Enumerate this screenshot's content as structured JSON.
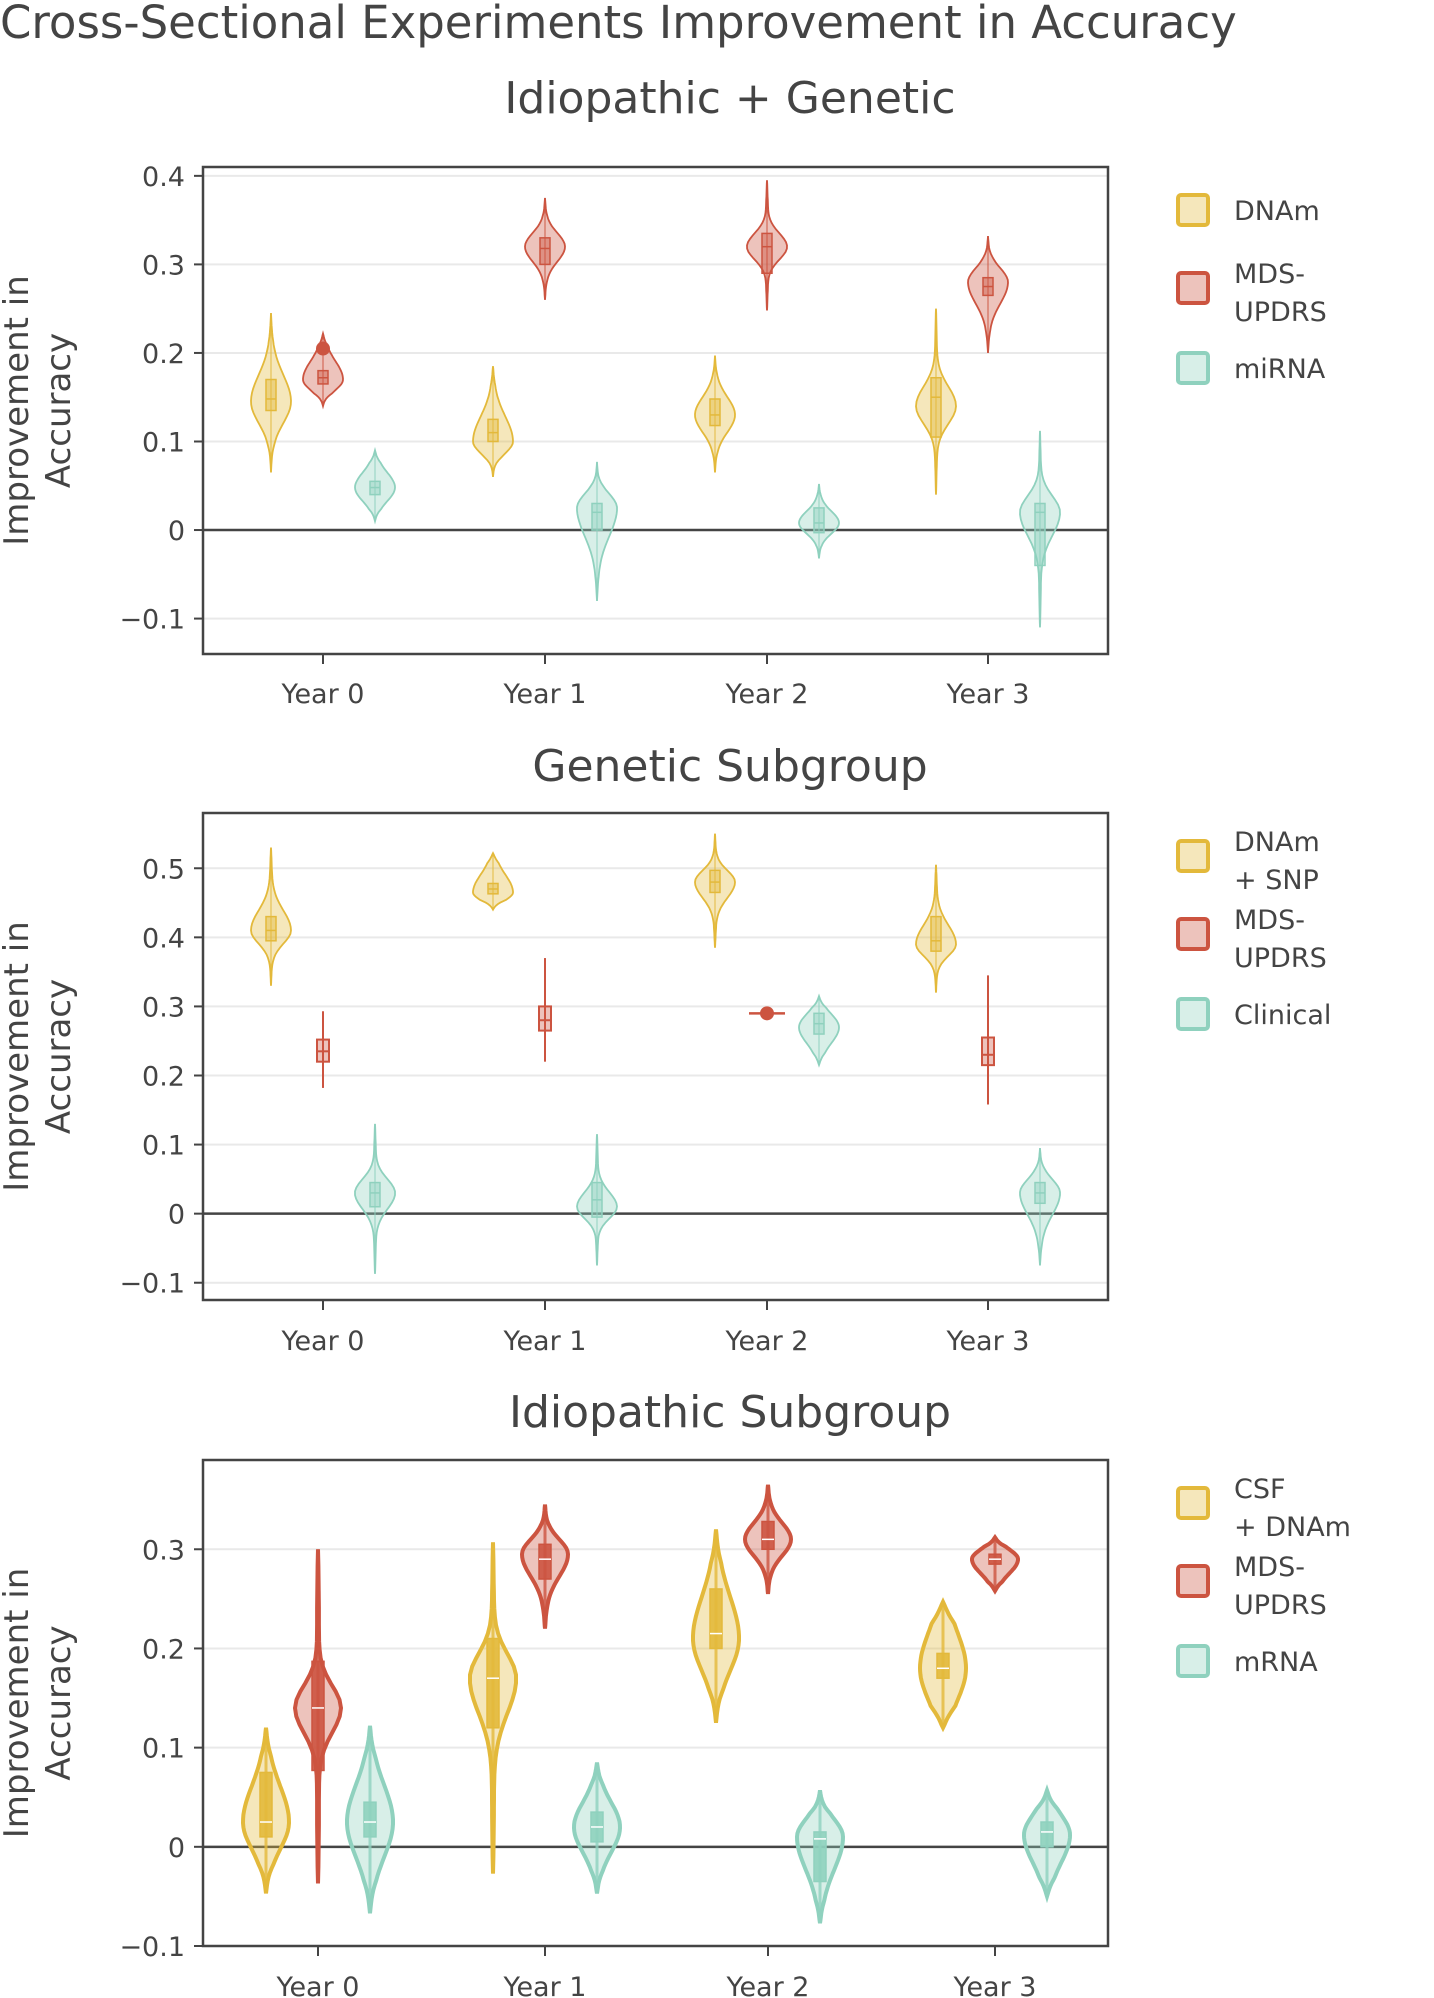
{
  "figure_title": "Cross-Sectional Experiments Improvement in Accuracy",
  "colors": {
    "yellow": "#E3B93B",
    "red": "#CC5440",
    "teal": "#8FD1BE",
    "axis": "#444444",
    "grid": "#E9E9E9"
  },
  "chart_data": [
    {
      "type": "violin",
      "title": "Idiopathic + Genetic",
      "ylabel": "Improvement in Accuracy",
      "ylim": [
        -0.14,
        0.41
      ],
      "yticks": [
        -0.1,
        0,
        0.1,
        0.2,
        0.3,
        0.4
      ],
      "ytick_labels": [
        "−0.1",
        "0",
        "0.1",
        "0.2",
        "0.3",
        "0.4"
      ],
      "categories": [
        "Year 0",
        "Year 1",
        "Year 2",
        "Year 3"
      ],
      "legend": [
        "DNAm",
        "MDS-\nUPDRS",
        "miRNA"
      ],
      "series": [
        {
          "name": "DNAm",
          "color": "yellow",
          "style": "thin",
          "stats": [
            {
              "min": 0.065,
              "q1": 0.135,
              "median": 0.148,
              "q3": 0.17,
              "max": 0.245,
              "peak": 0.145,
              "spread": 0.3
            },
            {
              "min": 0.06,
              "q1": 0.1,
              "median": 0.11,
              "q3": 0.125,
              "max": 0.185,
              "peak": 0.1,
              "spread": 0.33
            },
            {
              "min": 0.065,
              "q1": 0.118,
              "median": 0.13,
              "q3": 0.148,
              "max": 0.197,
              "peak": 0.13,
              "spread": 0.3
            },
            {
              "min": 0.04,
              "q1": 0.105,
              "median": 0.15,
              "q3": 0.172,
              "max": 0.25,
              "peak": 0.14,
              "spread": 0.2
            }
          ]
        },
        {
          "name": "MDS-UPDRS",
          "color": "red",
          "style": "thin",
          "stats": [
            {
              "min": 0.14,
              "q1": 0.165,
              "median": 0.172,
              "q3": 0.18,
              "max": 0.222,
              "peak": 0.17,
              "spread": 0.4,
              "dot": 0.205
            },
            {
              "min": 0.26,
              "q1": 0.3,
              "median": 0.318,
              "q3": 0.33,
              "max": 0.375,
              "peak": 0.32,
              "spread": 0.28
            },
            {
              "min": 0.248,
              "q1": 0.29,
              "median": 0.32,
              "q3": 0.335,
              "max": 0.395,
              "peak": 0.32,
              "spread": 0.2
            },
            {
              "min": 0.2,
              "q1": 0.265,
              "median": 0.275,
              "q3": 0.285,
              "max": 0.332,
              "peak": 0.28,
              "spread": 0.3
            }
          ]
        },
        {
          "name": "miRNA",
          "color": "teal",
          "style": "thin",
          "stats": [
            {
              "min": 0.01,
              "q1": 0.04,
              "median": 0.048,
              "q3": 0.055,
              "max": 0.09,
              "peak": 0.048,
              "spread": 0.4
            },
            {
              "min": -0.08,
              "q1": 0.0,
              "median": 0.02,
              "q3": 0.03,
              "max": 0.077,
              "peak": 0.025,
              "spread": 0.3
            },
            {
              "min": -0.032,
              "q1": -0.003,
              "median": 0.008,
              "q3": 0.025,
              "max": 0.052,
              "peak": 0.008,
              "spread": 0.3
            },
            {
              "min": -0.11,
              "q1": -0.04,
              "median": 0.02,
              "q3": 0.03,
              "max": 0.112,
              "peak": 0.02,
              "spread": 0.2
            }
          ]
        }
      ]
    },
    {
      "type": "violin",
      "title": "Genetic Subgroup",
      "ylabel": "Improvement in Accuracy",
      "ylim": [
        -0.125,
        0.58
      ],
      "yticks": [
        -0.1,
        0,
        0.1,
        0.2,
        0.3,
        0.4,
        0.5
      ],
      "ytick_labels": [
        "−0.1",
        "0",
        "0.1",
        "0.2",
        "0.3",
        "0.4",
        "0.5"
      ],
      "categories": [
        "Year 0",
        "Year 1",
        "Year 2",
        "Year 3"
      ],
      "legend": [
        "DNAm\n+ SNP",
        "MDS-\nUPDRS",
        "Clinical"
      ],
      "series": [
        {
          "name": "DNAm + SNP",
          "color": "yellow",
          "style": "thin",
          "stats": [
            {
              "min": 0.33,
              "q1": 0.395,
              "median": 0.41,
              "q3": 0.43,
              "max": 0.53,
              "peak": 0.41,
              "spread": 0.24
            },
            {
              "min": 0.44,
              "q1": 0.463,
              "median": 0.47,
              "q3": 0.478,
              "max": 0.522,
              "peak": 0.465,
              "spread": 0.45
            },
            {
              "min": 0.385,
              "q1": 0.465,
              "median": 0.48,
              "q3": 0.497,
              "max": 0.55,
              "peak": 0.48,
              "spread": 0.24
            },
            {
              "min": 0.32,
              "q1": 0.38,
              "median": 0.395,
              "q3": 0.43,
              "max": 0.505,
              "peak": 0.39,
              "spread": 0.24
            }
          ]
        },
        {
          "name": "MDS-UPDRS",
          "color": "red",
          "style": "box",
          "stats": [
            {
              "min": 0.182,
              "q1": 0.22,
              "median": 0.235,
              "q3": 0.252,
              "max": 0.293
            },
            {
              "min": 0.22,
              "q1": 0.265,
              "median": 0.28,
              "q3": 0.3,
              "max": 0.37
            },
            {
              "min": 0.29,
              "q1": 0.29,
              "median": 0.29,
              "q3": 0.29,
              "max": 0.29,
              "dot": 0.29,
              "hline": true
            },
            {
              "min": 0.158,
              "q1": 0.215,
              "median": 0.23,
              "q3": 0.255,
              "max": 0.345
            }
          ]
        },
        {
          "name": "Clinical",
          "color": "teal",
          "style": "thin",
          "stats": [
            {
              "min": -0.087,
              "q1": 0.01,
              "median": 0.03,
              "q3": 0.045,
              "max": 0.13,
              "peak": 0.03,
              "spread": 0.2
            },
            {
              "min": -0.075,
              "q1": -0.005,
              "median": 0.02,
              "q3": 0.045,
              "max": 0.115,
              "peak": 0.01,
              "spread": 0.2
            },
            {
              "min": 0.215,
              "q1": 0.26,
              "median": 0.275,
              "q3": 0.29,
              "max": 0.315,
              "peak": 0.27,
              "spread": 0.42
            },
            {
              "min": -0.075,
              "q1": 0.015,
              "median": 0.03,
              "q3": 0.045,
              "max": 0.095,
              "peak": 0.03,
              "spread": 0.3
            }
          ]
        }
      ]
    },
    {
      "type": "violin",
      "title": "Idiopathic Subgroup",
      "ylabel": "Improvement in Accuracy",
      "ylim": [
        -0.1,
        0.39
      ],
      "yticks": [
        -0.1,
        0,
        0.1,
        0.2,
        0.3
      ],
      "ytick_labels": [
        "−0.1",
        "0",
        "0.1",
        "0.2",
        "0.3"
      ],
      "categories": [
        "Year 0",
        "Year 1",
        "Year 2",
        "Year 3"
      ],
      "legend": [
        "CSF\n+ DNAm",
        "MDS-\nUPDRS",
        "mRNA"
      ],
      "series": [
        {
          "name": "CSF + DNAm",
          "color": "yellow",
          "style": "thick",
          "stats": [
            {
              "min": -0.047,
              "q1": 0.01,
              "median": 0.025,
              "q3": 0.075,
              "max": 0.12,
              "peak": 0.025,
              "spread": 0.38
            },
            {
              "min": -0.027,
              "q1": 0.12,
              "median": 0.17,
              "q3": 0.21,
              "max": 0.307,
              "peak": 0.17,
              "spread": 0.18
            },
            {
              "min": 0.125,
              "q1": 0.2,
              "median": 0.215,
              "q3": 0.26,
              "max": 0.32,
              "peak": 0.21,
              "spread": 0.38
            },
            {
              "min": 0.12,
              "q1": 0.17,
              "median": 0.18,
              "q3": 0.195,
              "max": 0.247,
              "peak": 0.18,
              "spread": 0.55
            }
          ]
        },
        {
          "name": "MDS-UPDRS",
          "color": "red",
          "style": "thick",
          "stats": [
            {
              "min": -0.037,
              "q1": 0.077,
              "median": 0.14,
              "q3": 0.187,
              "max": 0.3,
              "peak": 0.14,
              "spread": 0.14
            },
            {
              "min": 0.22,
              "q1": 0.27,
              "median": 0.29,
              "q3": 0.305,
              "max": 0.345,
              "peak": 0.295,
              "spread": 0.3
            },
            {
              "min": 0.255,
              "q1": 0.3,
              "median": 0.31,
              "q3": 0.328,
              "max": 0.365,
              "peak": 0.31,
              "spread": 0.3
            },
            {
              "min": 0.258,
              "q1": 0.285,
              "median": 0.29,
              "q3": 0.295,
              "max": 0.312,
              "peak": 0.29,
              "spread": 0.45
            }
          ]
        },
        {
          "name": "mRNA",
          "color": "teal",
          "style": "thick",
          "stats": [
            {
              "min": -0.067,
              "q1": 0.01,
              "median": 0.025,
              "q3": 0.045,
              "max": 0.122,
              "peak": 0.025,
              "spread": 0.38
            },
            {
              "min": -0.047,
              "q1": 0.005,
              "median": 0.02,
              "q3": 0.035,
              "max": 0.085,
              "peak": 0.02,
              "spread": 0.38
            },
            {
              "min": -0.077,
              "q1": -0.035,
              "median": 0.008,
              "q3": 0.015,
              "max": 0.057,
              "peak": 0.01,
              "spread": 0.38
            },
            {
              "min": -0.05,
              "q1": 0.0,
              "median": 0.015,
              "q3": 0.025,
              "max": 0.057,
              "peak": 0.012,
              "spread": 0.45
            }
          ]
        }
      ]
    }
  ]
}
